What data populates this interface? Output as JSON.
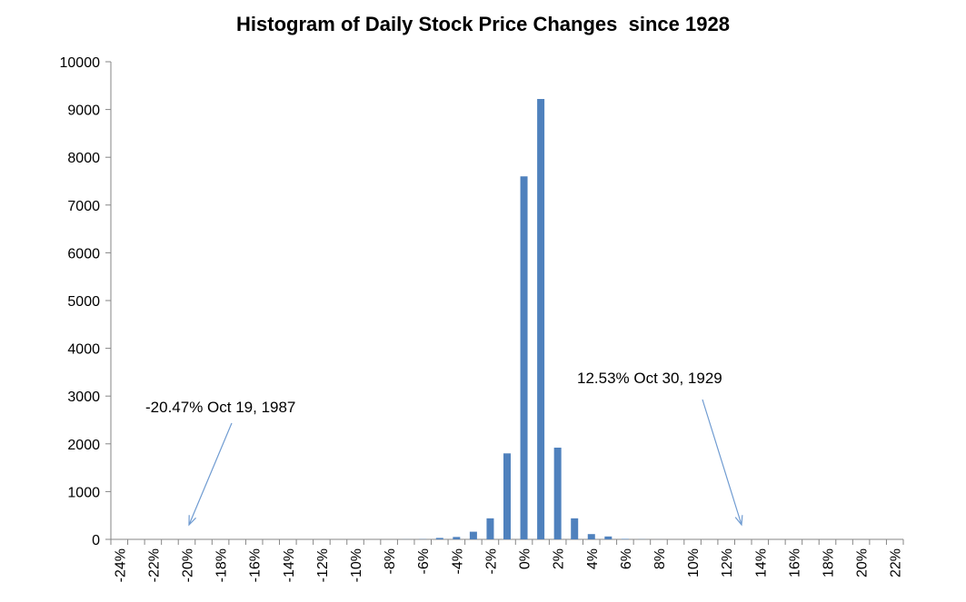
{
  "chart_data": {
    "type": "bar",
    "title": "Histogram of Daily Stock Price Changes  since 1928",
    "xlabel": "",
    "ylabel": "",
    "ylim": [
      0,
      10000
    ],
    "yticks": [
      "0",
      "1000",
      "2000",
      "3000",
      "4000",
      "5000",
      "6000",
      "7000",
      "8000",
      "9000",
      "10000"
    ],
    "ytick_values": [
      0,
      1000,
      2000,
      3000,
      4000,
      5000,
      6000,
      7000,
      8000,
      9000,
      10000
    ],
    "categories": [
      "-24%",
      "-23%",
      "-22%",
      "-21%",
      "-20%",
      "-19%",
      "-18%",
      "-17%",
      "-16%",
      "-15%",
      "-14%",
      "-13%",
      "-12%",
      "-11%",
      "-10%",
      "-9%",
      "-8%",
      "-7%",
      "-6%",
      "-5%",
      "-4%",
      "-3%",
      "-2%",
      "-1%",
      "0%",
      "1%",
      "2%",
      "3%",
      "4%",
      "5%",
      "6%",
      "7%",
      "8%",
      "9%",
      "10%",
      "11%",
      "12%",
      "13%",
      "14%",
      "15%",
      "16%",
      "17%",
      "18%",
      "19%",
      "20%",
      "21%",
      "22%"
    ],
    "tick_labels": [
      "-24%",
      "-22%",
      "-20%",
      "-18%",
      "-16%",
      "-14%",
      "-12%",
      "-10%",
      "-8%",
      "-6%",
      "-4%",
      "-2%",
      "0%",
      "2%",
      "4%",
      "6%",
      "8%",
      "10%",
      "12%",
      "14%",
      "16%",
      "18%",
      "20%",
      "22%"
    ],
    "values": [
      0,
      0,
      0,
      0,
      1,
      0,
      0,
      0,
      0,
      0,
      0,
      0,
      0,
      0,
      0,
      0,
      0,
      2,
      5,
      30,
      50,
      160,
      440,
      1800,
      7600,
      9220,
      1920,
      440,
      110,
      60,
      10,
      3,
      1,
      0,
      0,
      0,
      0,
      1,
      0,
      0,
      0,
      0,
      0,
      0,
      0,
      0,
      0
    ],
    "bar_color": "#4F81BD",
    "axis_color": "#868686",
    "annotations": [
      {
        "text": "-20.47% Oct 19, 1987",
        "x": -20.47,
        "y": 0
      },
      {
        "text": "12.53% Oct 30, 1929",
        "x": 12.53,
        "y": 0
      }
    ],
    "arrow_color": "#6F9BD1",
    "grid": false
  }
}
